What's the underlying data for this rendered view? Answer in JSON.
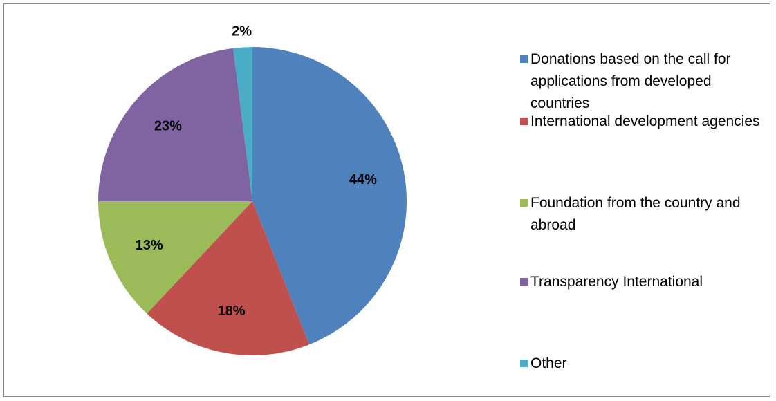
{
  "chart_data": {
    "type": "pie",
    "categories": [
      "Donations based on the call for applications from developed countries",
      "International development agencies",
      "Foundation from the country and abroad",
      "Transparency International",
      "Other"
    ],
    "values": [
      44,
      18,
      13,
      23,
      2
    ],
    "value_labels": [
      "44%",
      "18%",
      "13%",
      "23%",
      "2%"
    ],
    "colors": [
      "#4f81bd",
      "#c0504d",
      "#9bbb59",
      "#8064a2",
      "#4bacc6"
    ],
    "legend": "right"
  }
}
